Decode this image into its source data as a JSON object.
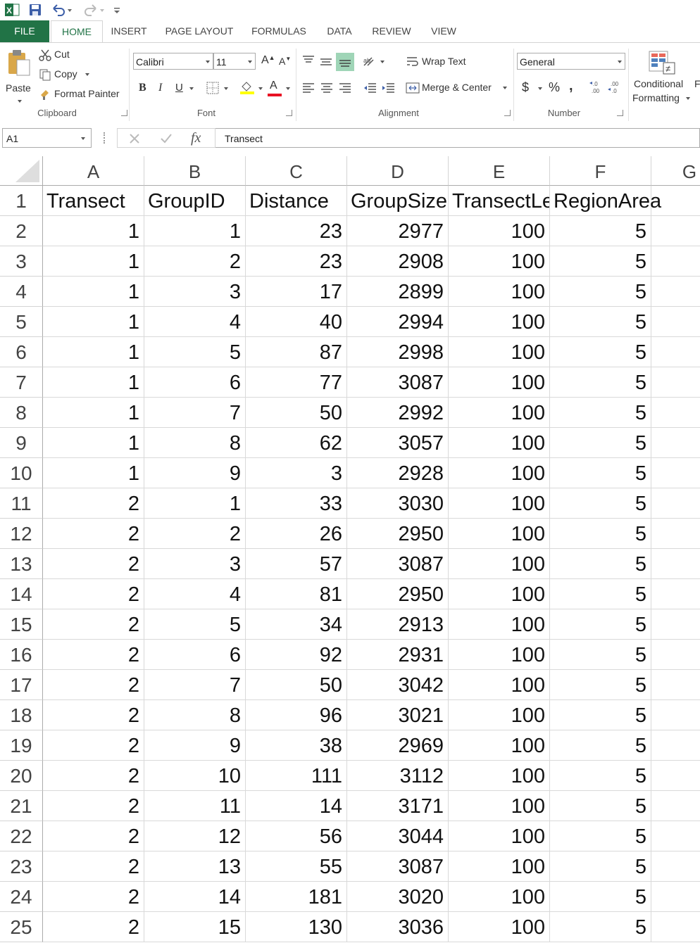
{
  "ribbon_tabs": [
    "FILE",
    "HOME",
    "INSERT",
    "PAGE LAYOUT",
    "FORMULAS",
    "DATA",
    "REVIEW",
    "VIEW"
  ],
  "clipboard": {
    "paste": "Paste",
    "cut": "Cut",
    "copy": "Copy",
    "format_painter": "Format Painter",
    "group": "Clipboard"
  },
  "font": {
    "name": "Calibri",
    "size": "11",
    "bold": "B",
    "italic": "I",
    "underline": "U",
    "font_color": "A",
    "group": "Font"
  },
  "alignment": {
    "wrap_text": "Wrap Text",
    "merge_center": "Merge & Center",
    "group": "Alignment"
  },
  "number": {
    "format": "General",
    "currency": "$",
    "percent": "%",
    "comma": ",",
    "group": "Number"
  },
  "styles": {
    "conditional_line1": "Conditional",
    "conditional_line2": "Formatting",
    "cut_off_label": "F"
  },
  "formula_bar": {
    "name_box": "A1",
    "fx": "fx",
    "content": "Transect"
  },
  "sheet": {
    "columns": [
      "A",
      "B",
      "C",
      "D",
      "E",
      "F",
      "G"
    ],
    "header_row": [
      "Transect",
      "GroupID",
      "Distance",
      "GroupSize",
      "TransectLe",
      "RegionArea"
    ],
    "rows": [
      [
        "2",
        "1",
        "1",
        "23",
        "2977",
        "100",
        "5"
      ],
      [
        "3",
        "1",
        "2",
        "23",
        "2908",
        "100",
        "5"
      ],
      [
        "4",
        "1",
        "3",
        "17",
        "2899",
        "100",
        "5"
      ],
      [
        "5",
        "1",
        "4",
        "40",
        "2994",
        "100",
        "5"
      ],
      [
        "6",
        "1",
        "5",
        "87",
        "2998",
        "100",
        "5"
      ],
      [
        "7",
        "1",
        "6",
        "77",
        "3087",
        "100",
        "5"
      ],
      [
        "8",
        "1",
        "7",
        "50",
        "2992",
        "100",
        "5"
      ],
      [
        "9",
        "1",
        "8",
        "62",
        "3057",
        "100",
        "5"
      ],
      [
        "10",
        "1",
        "9",
        "3",
        "2928",
        "100",
        "5"
      ],
      [
        "11",
        "2",
        "1",
        "33",
        "3030",
        "100",
        "5"
      ],
      [
        "12",
        "2",
        "2",
        "26",
        "2950",
        "100",
        "5"
      ],
      [
        "13",
        "2",
        "3",
        "57",
        "3087",
        "100",
        "5"
      ],
      [
        "14",
        "2",
        "4",
        "81",
        "2950",
        "100",
        "5"
      ],
      [
        "15",
        "2",
        "5",
        "34",
        "2913",
        "100",
        "5"
      ],
      [
        "16",
        "2",
        "6",
        "92",
        "2931",
        "100",
        "5"
      ],
      [
        "17",
        "2",
        "7",
        "50",
        "3042",
        "100",
        "5"
      ],
      [
        "18",
        "2",
        "8",
        "96",
        "3021",
        "100",
        "5"
      ],
      [
        "19",
        "2",
        "9",
        "38",
        "2969",
        "100",
        "5"
      ],
      [
        "20",
        "2",
        "10",
        "111",
        "3112",
        "100",
        "5"
      ],
      [
        "21",
        "2",
        "11",
        "14",
        "3171",
        "100",
        "5"
      ],
      [
        "22",
        "2",
        "12",
        "56",
        "3044",
        "100",
        "5"
      ],
      [
        "23",
        "2",
        "13",
        "55",
        "3087",
        "100",
        "5"
      ],
      [
        "24",
        "2",
        "14",
        "181",
        "3020",
        "100",
        "5"
      ],
      [
        "25",
        "2",
        "15",
        "130",
        "3036",
        "100",
        "5"
      ]
    ]
  }
}
